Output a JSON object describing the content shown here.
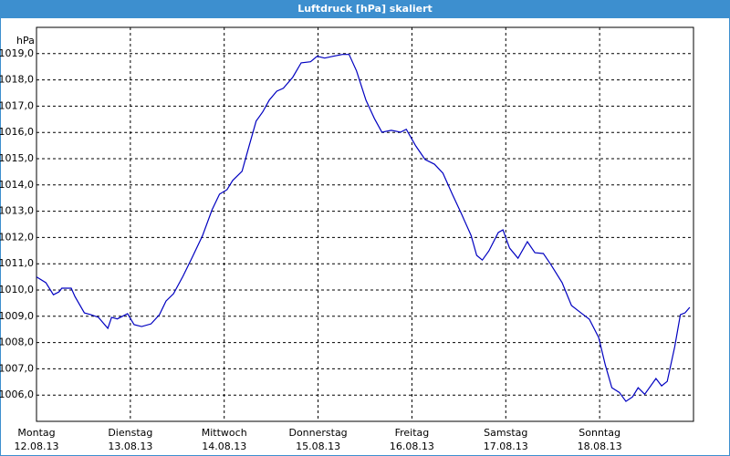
{
  "chart_data": {
    "type": "line",
    "title": "Luftdruck [hPa] skaliert",
    "ylabel": "hPa",
    "x": [
      0,
      0.1,
      0.18,
      0.24,
      0.27,
      0.37,
      0.41,
      0.51,
      0.58,
      0.66,
      0.76,
      0.8,
      0.86,
      0.97,
      1.04,
      1.12,
      1.22,
      1.31,
      1.38,
      1.46,
      1.56,
      1.66,
      1.77,
      1.87,
      1.95,
      2.03,
      2.09,
      2.19,
      2.26,
      2.34,
      2.41,
      2.48,
      2.56,
      2.63,
      2.73,
      2.82,
      2.92,
      2.99,
      3.07,
      3.16,
      3.26,
      3.33,
      3.41,
      3.51,
      3.6,
      3.68,
      3.78,
      3.88,
      3.94,
      4.04,
      4.14,
      4.24,
      4.33,
      4.43,
      4.53,
      4.63,
      4.69,
      4.75,
      4.82,
      4.92,
      4.97,
      5.04,
      5.13,
      5.23,
      5.31,
      5.4,
      5.48,
      5.6,
      5.7,
      5.79,
      5.89,
      5.99,
      6.06,
      6.13,
      6.21,
      6.28,
      6.35,
      6.41,
      6.48,
      6.6,
      6.66,
      6.72,
      6.8,
      6.86,
      6.91,
      6.96
    ],
    "series": [
      {
        "name": "Luftdruck",
        "color": "#0000c0",
        "values": [
          1010.5,
          1010.28,
          1009.82,
          1009.93,
          1010.07,
          1010.07,
          1009.75,
          1009.13,
          1009.06,
          1008.96,
          1008.54,
          1008.96,
          1008.9,
          1009.1,
          1008.68,
          1008.61,
          1008.71,
          1009.06,
          1009.58,
          1009.86,
          1010.52,
          1011.25,
          1012.08,
          1013.05,
          1013.65,
          1013.82,
          1014.17,
          1014.52,
          1015.42,
          1016.43,
          1016.78,
          1017.23,
          1017.57,
          1017.68,
          1018.1,
          1018.65,
          1018.69,
          1018.9,
          1018.83,
          1018.9,
          1018.97,
          1018.97,
          1018.34,
          1017.23,
          1016.53,
          1016.01,
          1016.08,
          1016.01,
          1016.12,
          1015.49,
          1014.97,
          1014.79,
          1014.45,
          1013.65,
          1012.88,
          1012.08,
          1011.32,
          1011.14,
          1011.49,
          1012.19,
          1012.29,
          1011.6,
          1011.21,
          1011.84,
          1011.42,
          1011.39,
          1010.97,
          1010.28,
          1009.41,
          1009.16,
          1008.89,
          1008.19,
          1007.15,
          1006.28,
          1006.1,
          1005.76,
          1005.93,
          1006.28,
          1006.03,
          1006.63,
          1006.35,
          1006.52,
          1007.84,
          1009.06,
          1009.13,
          1009.34
        ]
      }
    ],
    "xlim": [
      0,
      7
    ],
    "xticks": [
      {
        "value": 0,
        "label": "Montag"
      },
      {
        "value": 1,
        "label": "Dienstag"
      },
      {
        "value": 2,
        "label": "Mittwoch"
      },
      {
        "value": 3,
        "label": "Donnerstag"
      },
      {
        "value": 4,
        "label": "Freitag"
      },
      {
        "value": 5,
        "label": "Samstag"
      },
      {
        "value": 6,
        "label": "Sonntag"
      }
    ],
    "xtick_dates": [
      "12.08.13",
      "13.08.13",
      "14.08.13",
      "15.08.13",
      "16.08.13",
      "17.08.13",
      "18.08.13"
    ],
    "ylim": [
      1005,
      1020
    ],
    "yticks": [
      {
        "value": 1006,
        "label": "1006,0"
      },
      {
        "value": 1007,
        "label": "1007,0"
      },
      {
        "value": 1008,
        "label": "1008,0"
      },
      {
        "value": 1009,
        "label": "1009,0"
      },
      {
        "value": 1010,
        "label": "1010,0"
      },
      {
        "value": 1011,
        "label": "1011,0"
      },
      {
        "value": 1012,
        "label": "1012,0"
      },
      {
        "value": 1013,
        "label": "1013,0"
      },
      {
        "value": 1014,
        "label": "1014,0"
      },
      {
        "value": 1015,
        "label": "1015,0"
      },
      {
        "value": 1016,
        "label": "1016,0"
      },
      {
        "value": 1017,
        "label": "1017,0"
      },
      {
        "value": 1018,
        "label": "1018,0"
      },
      {
        "value": 1019,
        "label": "1019,0"
      }
    ],
    "grid": true
  }
}
